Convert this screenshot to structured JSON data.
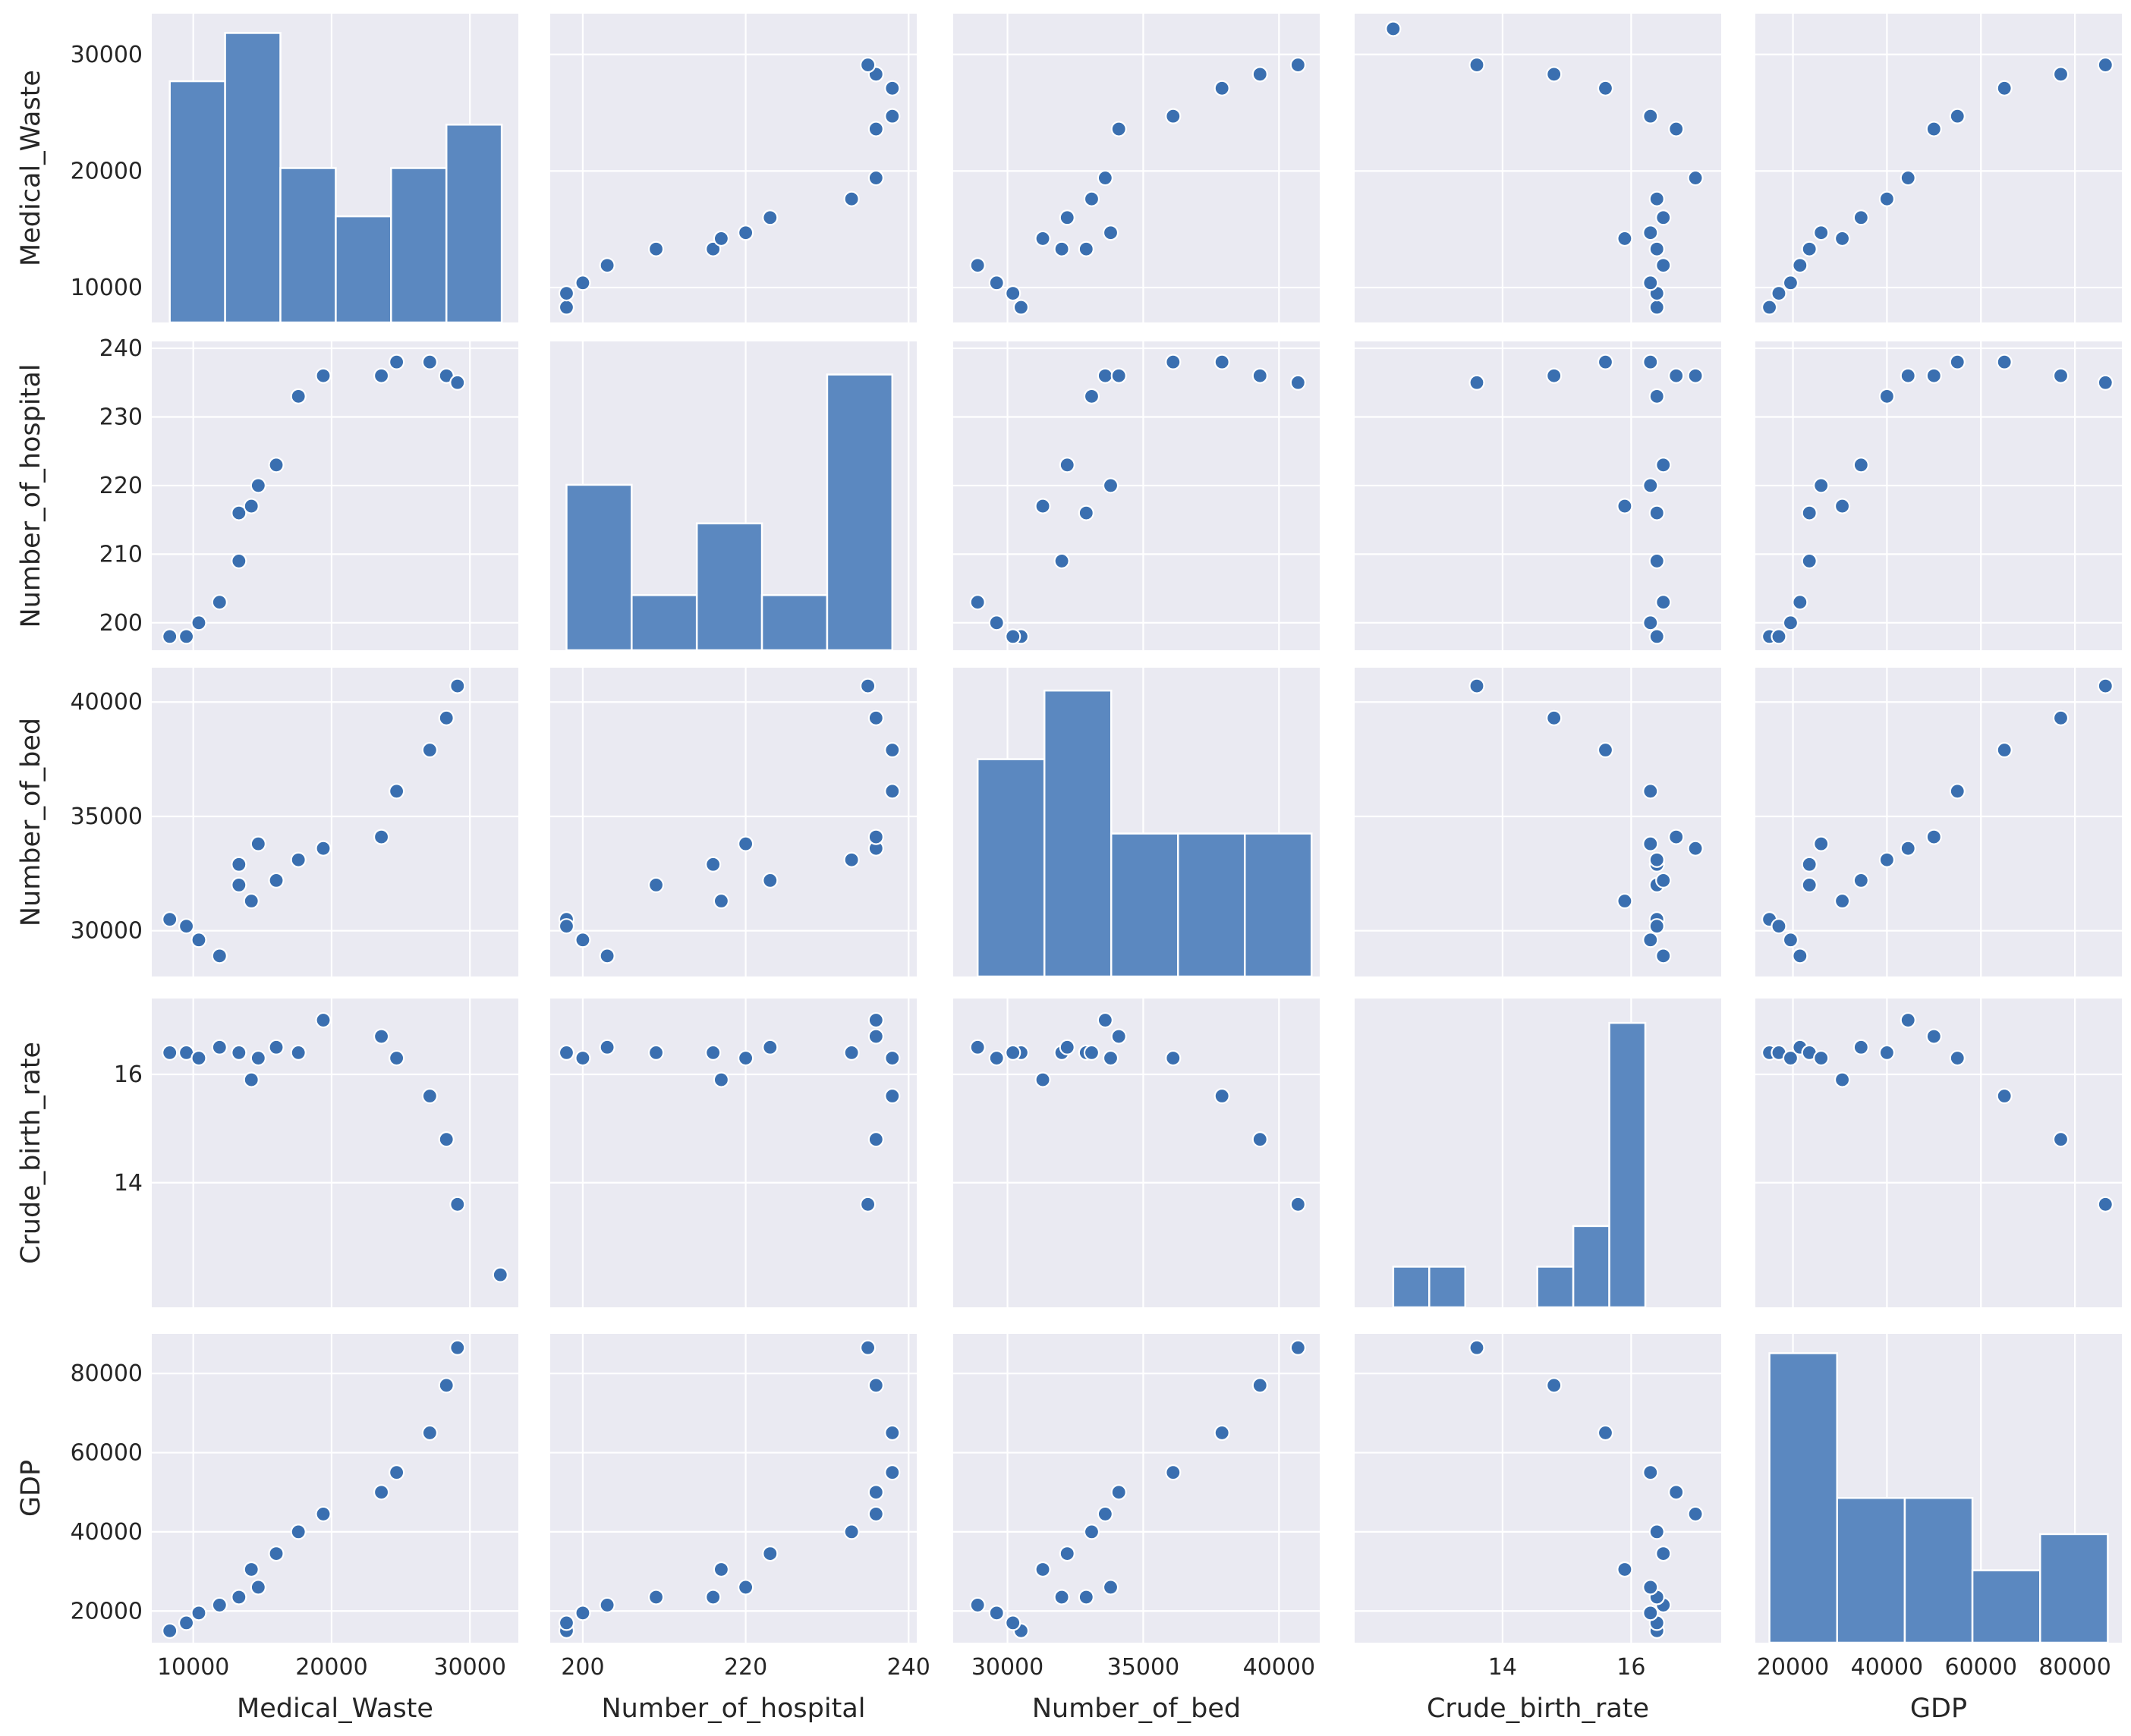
{
  "chart_data": {
    "type": "scatter",
    "title": "",
    "variables": [
      "Medical_Waste",
      "Number_of_hospital",
      "Number_of_bed",
      "Crude_birth_rate",
      "GDP"
    ],
    "axis_labels": {
      "Medical_Waste": "Medical_Waste",
      "Number_of_hospital": "Number_of_hospital",
      "Number_of_bed": "Number_of_bed",
      "Crude_birth_rate": "Crude_birth_rate",
      "GDP": "GDP"
    },
    "ranges": {
      "Medical_Waste": [
        7000,
        33500
      ],
      "Number_of_hospital": [
        196,
        241
      ],
      "Number_of_bed": [
        28000,
        41500
      ],
      "Crude_birth_rate": [
        11.7,
        17.4
      ],
      "GDP": [
        12000,
        90000
      ]
    },
    "ticks": {
      "Medical_Waste": [
        10000,
        20000,
        30000
      ],
      "Number_of_hospital": [
        200,
        220,
        240
      ],
      "Number_of_bed": [
        30000,
        35000,
        40000
      ],
      "Crude_birth_rate": [
        14,
        16
      ],
      "GDP": [
        20000,
        40000,
        60000,
        80000
      ]
    },
    "y_ticks": {
      "Medical_Waste": [
        10000,
        20000,
        30000
      ],
      "Number_of_hospital": [
        200,
        210,
        220,
        230,
        240
      ],
      "Number_of_bed": [
        30000,
        35000,
        40000
      ],
      "Crude_birth_rate": [
        14,
        16
      ],
      "GDP": [
        20000,
        40000,
        60000,
        80000
      ]
    },
    "points": [
      {
        "Medical_Waste": 8300,
        "Number_of_hospital": 198,
        "Number_of_bed": 30500,
        "Crude_birth_rate": 16.4,
        "GDP": 15000
      },
      {
        "Medical_Waste": 9500,
        "Number_of_hospital": 198,
        "Number_of_bed": 30200,
        "Crude_birth_rate": 16.4,
        "GDP": 17000
      },
      {
        "Medical_Waste": 10400,
        "Number_of_hospital": 200,
        "Number_of_bed": 29600,
        "Crude_birth_rate": 16.3,
        "GDP": 19500
      },
      {
        "Medical_Waste": 11900,
        "Number_of_hospital": 203,
        "Number_of_bed": 28900,
        "Crude_birth_rate": 16.5,
        "GDP": 21500
      },
      {
        "Medical_Waste": 13300,
        "Number_of_hospital": 209,
        "Number_of_bed": 32000,
        "Crude_birth_rate": 16.4,
        "GDP": 23500
      },
      {
        "Medical_Waste": 13300,
        "Number_of_hospital": 216,
        "Number_of_bed": 32900,
        "Crude_birth_rate": 16.4,
        "GDP": 23500
      },
      {
        "Medical_Waste": 14200,
        "Number_of_hospital": 217,
        "Number_of_bed": 31300,
        "Crude_birth_rate": 15.9,
        "GDP": 30500
      },
      {
        "Medical_Waste": 14700,
        "Number_of_hospital": 220,
        "Number_of_bed": 33800,
        "Crude_birth_rate": 16.3,
        "GDP": 26000
      },
      {
        "Medical_Waste": 16000,
        "Number_of_hospital": 223,
        "Number_of_bed": 32200,
        "Crude_birth_rate": 16.5,
        "GDP": 34500
      },
      {
        "Medical_Waste": 17600,
        "Number_of_hospital": 233,
        "Number_of_bed": 33100,
        "Crude_birth_rate": 16.4,
        "GDP": 40000
      },
      {
        "Medical_Waste": 19400,
        "Number_of_hospital": 236,
        "Number_of_bed": 33600,
        "Crude_birth_rate": 17.0,
        "GDP": 44500
      },
      {
        "Medical_Waste": 23600,
        "Number_of_hospital": 236,
        "Number_of_bed": 34100,
        "Crude_birth_rate": 16.7,
        "GDP": 50000
      },
      {
        "Medical_Waste": 24700,
        "Number_of_hospital": 238,
        "Number_of_bed": 36100,
        "Crude_birth_rate": 16.3,
        "GDP": 55000
      },
      {
        "Medical_Waste": 27100,
        "Number_of_hospital": 238,
        "Number_of_bed": 37900,
        "Crude_birth_rate": 15.6,
        "GDP": 65000
      },
      {
        "Medical_Waste": 28300,
        "Number_of_hospital": 236,
        "Number_of_bed": 39300,
        "Crude_birth_rate": 14.8,
        "GDP": 77000
      },
      {
        "Medical_Waste": 29100,
        "Number_of_hospital": 235,
        "Number_of_bed": 40700,
        "Crude_birth_rate": 13.6,
        "GDP": 86500
      },
      {
        "Medical_Waste": 32200,
        "Number_of_hospital": null,
        "Number_of_bed": null,
        "Crude_birth_rate": 12.3,
        "GDP": null
      }
    ],
    "histograms": {
      "Medical_Waste": {
        "edges": [
          8300,
          12300,
          16300,
          20300,
          24300,
          28300,
          32300
        ],
        "counts": [
          2.5,
          3,
          1.6,
          1.1,
          1.6,
          2.05
        ],
        "ymax": 3.2
      },
      "Number_of_hospital": {
        "edges": [
          198,
          206,
          214,
          222,
          230,
          238
        ],
        "counts": [
          3,
          1,
          2.3,
          1,
          5
        ],
        "ymax": 5.6
      },
      "Number_of_bed": {
        "edges": [
          28900,
          31360,
          33820,
          36280,
          38740,
          41200
        ],
        "counts": [
          3.8,
          5.0,
          2.5,
          2.5,
          2.5
        ],
        "ymax": 5.4
      },
      "Crude_birth_rate": {
        "edges": [
          12.3,
          12.86,
          13.42,
          13.98,
          14.54,
          15.1,
          15.66,
          16.22,
          16.78,
          17.34
        ],
        "counts": [
          1,
          1,
          0,
          0,
          1,
          2,
          7,
          0,
          0
        ],
        "ymax": 7.6
      },
      "GDP": {
        "edges": [
          15000,
          29400,
          43800,
          58200,
          72600,
          87000
        ],
        "counts": [
          6,
          3,
          3,
          1.5,
          2.25
        ],
        "ymax": 6.4
      }
    }
  }
}
